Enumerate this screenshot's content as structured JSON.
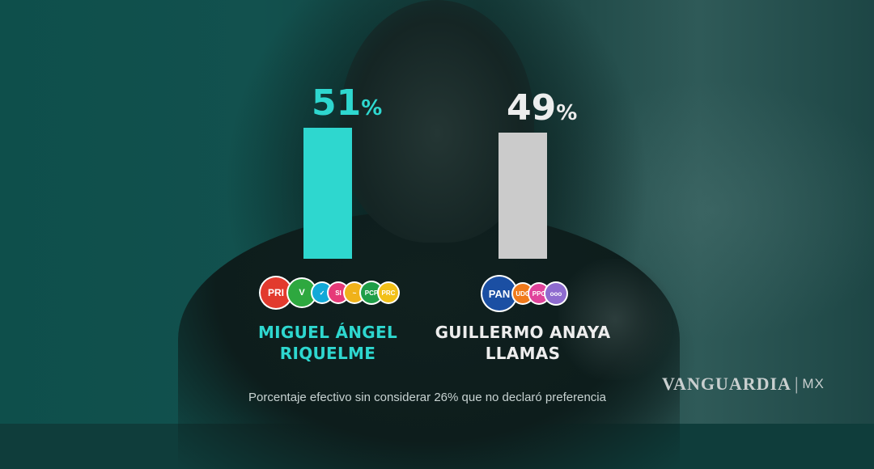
{
  "chart_data": {
    "type": "bar",
    "categories": [
      "MIGUEL ÁNGEL RIQUELME",
      "GUILLERMO ANAYA LLAMAS"
    ],
    "values": [
      51,
      49
    ],
    "value_labels": [
      "51",
      "49"
    ],
    "value_suffix": "%",
    "ylim": [
      0,
      51
    ],
    "colors": [
      "#2ed7cf",
      "#cbcbcb"
    ],
    "name_colors": [
      "#2ed7cf",
      "#ededed"
    ],
    "name_lines": [
      [
        "MIGUEL ÁNGEL",
        "RIQUELME"
      ],
      [
        "GUILLERMO ANAYA",
        "LLAMAS"
      ]
    ],
    "party_logos": [
      [
        {
          "label": "PRI",
          "color": "#e23a2e"
        },
        {
          "label": "V",
          "color": "#2ea83f"
        },
        {
          "label": "✓",
          "color": "#12a9d8"
        },
        {
          "label": "SI",
          "color": "#e63a78"
        },
        {
          "label": "~",
          "color": "#f0b21a"
        },
        {
          "label": "PCP",
          "color": "#1f9e48"
        },
        {
          "label": "PRC",
          "color": "#f2c018"
        }
      ],
      [
        {
          "label": "PAN",
          "color": "#1b4fa3"
        },
        {
          "label": "UDC",
          "color": "#f07a1c"
        },
        {
          "label": "PPC",
          "color": "#e0439b"
        },
        {
          "label": "ooo",
          "color": "#8e6bcf"
        }
      ]
    ],
    "footnote": "Porcentaje efectivo sin considerar 26% que no declaró preferencia"
  },
  "watermark": {
    "brand": "VANGUARDIA",
    "separator": "|",
    "country": "MX"
  }
}
